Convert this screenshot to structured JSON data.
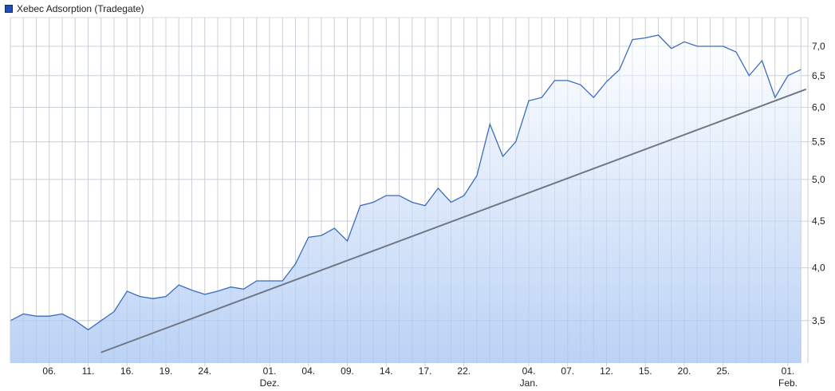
{
  "chart_data": {
    "type": "area",
    "title": "",
    "legend": {
      "label": "Xebec Adsorption (Tradegate)",
      "placement": "top-left",
      "color": "#1f4fb4"
    },
    "y_scale": "log",
    "ylim": [
      3.22,
      7.55
    ],
    "y_ticks": [
      "3,5",
      "4,0",
      "4,5",
      "5,0",
      "5,5",
      "6,0",
      "6,5",
      "7,0"
    ],
    "y_tick_values": [
      3.5,
      4.0,
      4.5,
      5.0,
      5.5,
      6.0,
      6.5,
      7.0
    ],
    "x_ticks": [
      {
        "index": 3,
        "label": "06.",
        "sub": ""
      },
      {
        "index": 6,
        "label": "11.",
        "sub": ""
      },
      {
        "index": 9,
        "label": "16.",
        "sub": ""
      },
      {
        "index": 12,
        "label": "19.",
        "sub": ""
      },
      {
        "index": 15,
        "label": "24.",
        "sub": ""
      },
      {
        "index": 20,
        "label": "01.",
        "sub": "Dez."
      },
      {
        "index": 23,
        "label": "04.",
        "sub": ""
      },
      {
        "index": 26,
        "label": "09.",
        "sub": ""
      },
      {
        "index": 29,
        "label": "14.",
        "sub": ""
      },
      {
        "index": 32,
        "label": "17.",
        "sub": ""
      },
      {
        "index": 35,
        "label": "22.",
        "sub": ""
      },
      {
        "index": 40,
        "label": "04.",
        "sub": "Jan."
      },
      {
        "index": 43,
        "label": "07.",
        "sub": ""
      },
      {
        "index": 46,
        "label": "12.",
        "sub": ""
      },
      {
        "index": 49,
        "label": "15.",
        "sub": ""
      },
      {
        "index": 52,
        "label": "20.",
        "sub": ""
      },
      {
        "index": 55,
        "label": "25.",
        "sub": ""
      },
      {
        "index": 60,
        "label": "01.",
        "sub": "Feb."
      }
    ],
    "grid": true,
    "values": [
      3.5,
      3.56,
      3.54,
      3.54,
      3.56,
      3.5,
      3.42,
      3.5,
      3.58,
      3.77,
      3.72,
      3.7,
      3.72,
      3.83,
      3.78,
      3.74,
      3.77,
      3.81,
      3.79,
      3.87,
      3.87,
      3.87,
      4.04,
      4.32,
      4.34,
      4.42,
      4.28,
      4.68,
      4.72,
      4.8,
      4.8,
      4.72,
      4.68,
      4.89,
      4.72,
      4.8,
      5.05,
      5.75,
      5.3,
      5.5,
      6.1,
      6.15,
      6.42,
      6.42,
      6.35,
      6.15,
      6.4,
      6.6,
      7.12,
      7.15,
      7.2,
      6.96,
      7.08,
      7.0,
      7.0,
      7.0,
      6.9,
      6.5,
      6.75,
      6.15,
      6.5,
      6.6
    ],
    "trendline": {
      "start_index": 7,
      "start_value": 3.23,
      "end_index": 61.4,
      "end_value": 6.28,
      "color": "#707884"
    },
    "line_color": "#3a6cc0"
  }
}
